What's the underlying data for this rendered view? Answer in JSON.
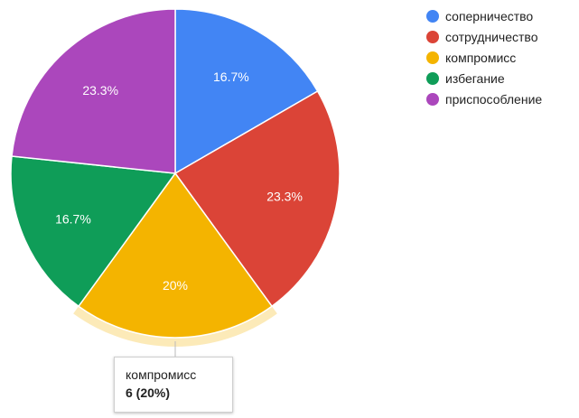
{
  "chart_data": {
    "type": "pie",
    "title": "",
    "categories": [
      "соперничество",
      "сотрудничество",
      "компромисс",
      "избегание",
      "приспособление"
    ],
    "values": [
      5,
      7,
      6,
      5,
      7
    ],
    "labels": [
      "16.7%",
      "23.3%",
      "20%",
      "16.7%",
      "23.3%"
    ],
    "colors": [
      "#4285f4",
      "#db4437",
      "#f4b400",
      "#0f9d58",
      "#ab47bc"
    ],
    "legend_position": "right",
    "highlighted": 2
  },
  "tooltip": {
    "title": "компромисс",
    "value": "6 (20%)"
  }
}
